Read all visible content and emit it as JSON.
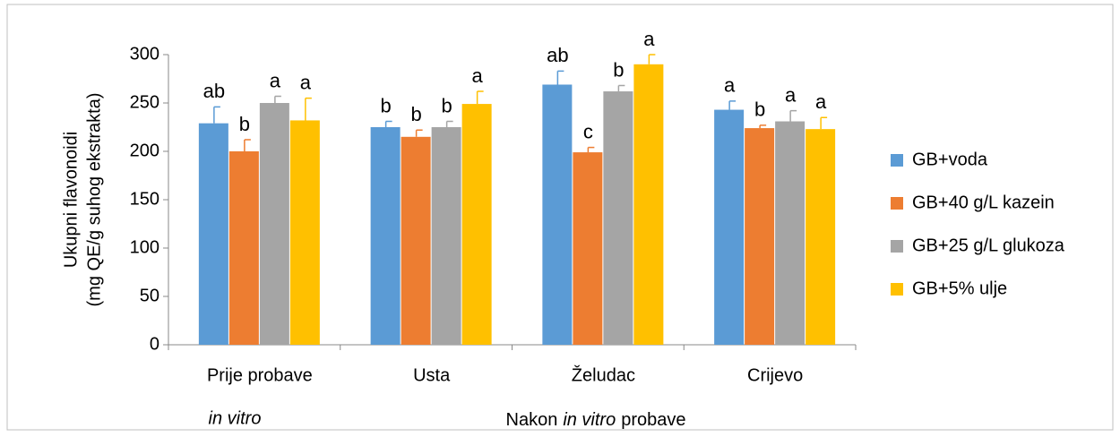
{
  "chart_data": {
    "type": "bar",
    "y_label_lines": [
      "Ukupni  flavonoidi",
      "(mg QE/g suhog ekstrakta)"
    ],
    "categories": [
      "Prije probave",
      "Usta",
      "Želudac",
      "Crijevo"
    ],
    "first_category_note": "in vitro",
    "x_label_parts": [
      "Nakon",
      "in vitro",
      "probave"
    ],
    "ylim": [
      0,
      300
    ],
    "yticks": [
      0,
      50,
      100,
      150,
      200,
      250,
      300
    ],
    "grid": false,
    "legend": "right",
    "series": [
      {
        "name": "GB+voda",
        "color": "#5b9bd5",
        "values": [
          229,
          225,
          269,
          243
        ],
        "errors": [
          17,
          6,
          14,
          9
        ],
        "letters": [
          "ab",
          "b",
          "ab",
          "a"
        ]
      },
      {
        "name": "GB+40 g/L kazein",
        "color": "#ed7d31",
        "values": [
          200,
          215,
          199,
          224
        ],
        "errors": [
          12,
          7,
          5,
          3
        ],
        "letters": [
          "b",
          "b",
          "c",
          "b"
        ]
      },
      {
        "name": "GB+25 g/L glukoza",
        "color": "#a5a5a5",
        "values": [
          250,
          225,
          262,
          231
        ],
        "errors": [
          7,
          6,
          6,
          11
        ],
        "letters": [
          "a",
          "b",
          "b",
          "a"
        ]
      },
      {
        "name": "GB+5% ulje",
        "color": "#ffc000",
        "values": [
          232,
          249,
          290,
          223
        ],
        "errors": [
          23,
          13,
          10,
          12
        ],
        "letters": [
          "a",
          "a",
          "a",
          "a"
        ]
      }
    ]
  }
}
